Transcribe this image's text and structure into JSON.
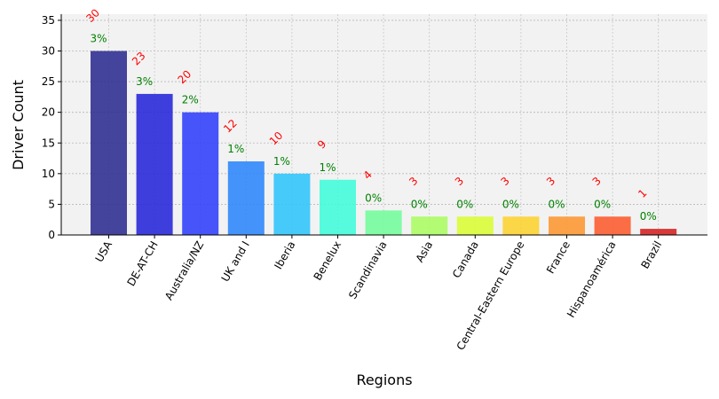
{
  "chart_data": {
    "type": "bar",
    "title": "",
    "xlabel": "Regions",
    "ylabel": "Driver Count",
    "ylim": [
      0,
      36
    ],
    "yticks": [
      0,
      5,
      10,
      15,
      20,
      25,
      30,
      35
    ],
    "grid": true,
    "categories": [
      "USA",
      "DE-AT-CH",
      "Australia/NZ",
      "UK and I",
      "Iberia",
      "Benelux",
      "Scandinavia",
      "Asia",
      "Canada",
      "Central-Eastern Europe",
      "France",
      "Hispanoamérica",
      "Brazil"
    ],
    "values": [
      30,
      23,
      20,
      12,
      10,
      9,
      4,
      3,
      3,
      3,
      3,
      3,
      1
    ],
    "count_labels": [
      "30",
      "23",
      "20",
      "12",
      "10",
      "9",
      "4",
      "3",
      "3",
      "3",
      "3",
      "3",
      "1"
    ],
    "percent_labels": [
      "3%",
      "3%",
      "2%",
      "1%",
      "1%",
      "1%",
      "0%",
      "0%",
      "0%",
      "0%",
      "0%",
      "0%",
      "0%"
    ],
    "bar_colors": [
      "#2b2b8f",
      "#2424d8",
      "#2e3dfb",
      "#2a85fb",
      "#2ec4fb",
      "#3ffcd8",
      "#71fc9a",
      "#aafc60",
      "#d9fc33",
      "#fcd12e",
      "#fc9630",
      "#fc5a2b",
      "#d41f1f"
    ],
    "count_label_color": "#ff0000",
    "percent_label_color": "#008000",
    "plot_background": "#f2f2f2"
  }
}
